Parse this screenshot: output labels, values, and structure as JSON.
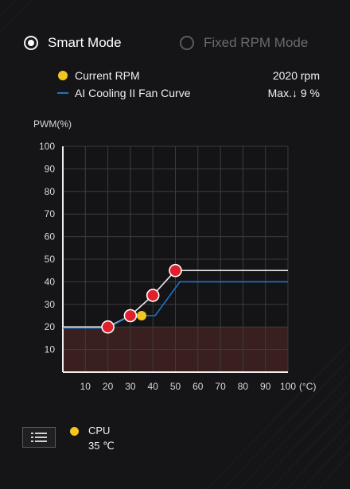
{
  "modes": {
    "smart_label": "Smart Mode",
    "fixed_label": "Fixed RPM Mode",
    "selected": "smart"
  },
  "legend": {
    "current_rpm_label": "Current RPM",
    "current_rpm_value": "2020 rpm",
    "ai_curve_label": "AI Cooling II Fan Curve",
    "ai_curve_value": "Max.↓ 9 %"
  },
  "colors": {
    "accent_yellow": "#f3c51f",
    "curve_blue": "#1e74c8",
    "point_red": "#e0202c",
    "curve_white": "#e8e8e8",
    "floor_fill": "#3a1f1f"
  },
  "chart_data": {
    "type": "line",
    "ylabel": "PWM(%)",
    "xunit": "(°C)",
    "xlim": [
      0,
      100
    ],
    "ylim": [
      0,
      100
    ],
    "xticks": [
      10,
      20,
      30,
      40,
      50,
      60,
      70,
      80,
      90,
      100
    ],
    "yticks": [
      10,
      20,
      30,
      40,
      50,
      60,
      70,
      80,
      90,
      100
    ],
    "grid": true,
    "floor_pwm": 20,
    "series": [
      {
        "name": "",
        "role": "user-curve",
        "color": "#e8e8e8",
        "x": [
          0,
          20,
          30,
          40,
          50,
          100
        ],
        "y": [
          20,
          20,
          25,
          34,
          45,
          45
        ],
        "points": [
          {
            "x": 20,
            "y": 20
          },
          {
            "x": 30,
            "y": 25
          },
          {
            "x": 40,
            "y": 34
          },
          {
            "x": 50,
            "y": 45
          }
        ]
      },
      {
        "name": "AI Cooling II Fan Curve",
        "role": "ai-curve",
        "color": "#1e74c8",
        "x": [
          0,
          20,
          30,
          41,
          52,
          100
        ],
        "y": [
          19.5,
          19.5,
          25,
          25,
          40,
          40
        ]
      }
    ],
    "current_point": {
      "x": 35,
      "y": 25
    }
  },
  "sensor": {
    "icon": "list-icon",
    "name": "CPU",
    "temperature": "35 ℃"
  }
}
